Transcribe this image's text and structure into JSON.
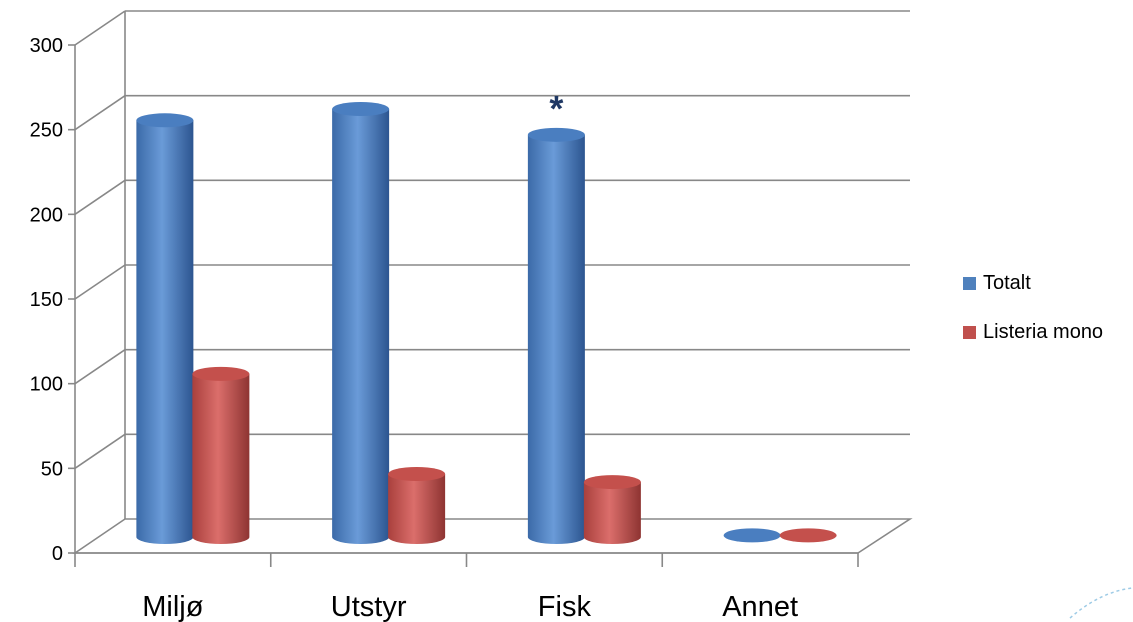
{
  "chart_data": {
    "type": "bar",
    "categories": [
      "Miljø",
      "Utstyr",
      "Fisk",
      "Annet"
    ],
    "series": [
      {
        "name": "Totalt",
        "values": [
          258,
          265,
          249,
          1
        ],
        "color": "#4F81BD"
      },
      {
        "name": "Listeria mono",
        "values": [
          101,
          39,
          34,
          1
        ],
        "color": "#C0504D"
      }
    ],
    "ylim": [
      0,
      300
    ],
    "yticks": [
      0,
      50,
      100,
      150,
      200,
      250,
      300
    ],
    "grid": true,
    "legend": "right",
    "annotation": {
      "text": "*",
      "category": "Fisk",
      "series": "Totalt",
      "color": "#1F3864"
    }
  }
}
